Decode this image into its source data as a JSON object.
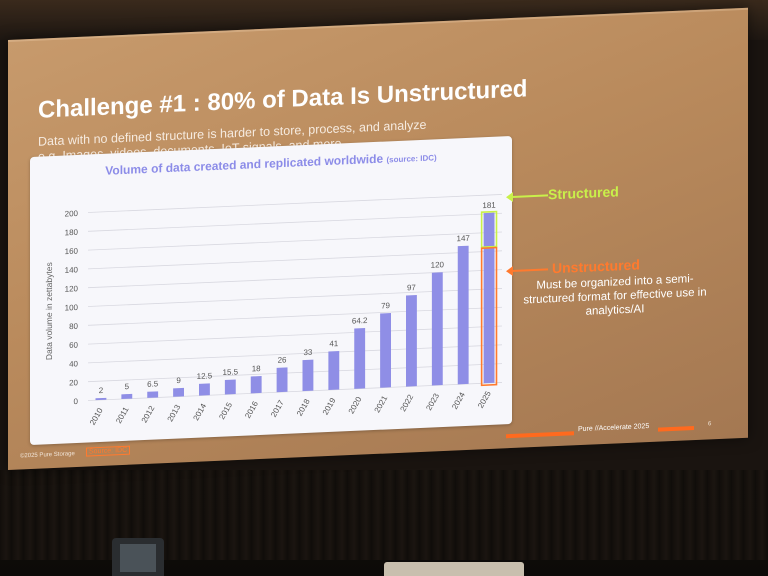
{
  "slide": {
    "title": "Challenge #1 : 80% of Data Is Unstructured",
    "subtitle_line1": "Data with no defined structure is harder to store, process, and analyze",
    "subtitle_line2": "e.g. Images, videos, documents, IoT signals, and more",
    "legend_structured": "Structured",
    "legend_unstructured": "Unstructured",
    "legend_unstructured_desc": "Must be organized into a semi-structured format for effective use in analytics/AI",
    "footer_copyright": "©2025 Pure Storage",
    "footer_source": "Source: IDC",
    "footer_brand": "Pure //Accelerate 2025",
    "page_number": "6"
  },
  "colors": {
    "bar": "#8f8ee6",
    "structured": "#c9f04a",
    "unstructured": "#ff7a2e"
  },
  "chart_data": {
    "type": "bar",
    "title": "Volume of data created and replicated worldwide",
    "title_source": "(source: IDC)",
    "ylabel": "Data volume in zettabytes",
    "xlabel": "",
    "categories": [
      "2010",
      "2011",
      "2012",
      "2013",
      "2014",
      "2015",
      "2016",
      "2017",
      "2018",
      "2019",
      "2020",
      "2021",
      "2022",
      "2023",
      "2024",
      "2025"
    ],
    "values": [
      2,
      5,
      6.5,
      9,
      12.5,
      15.5,
      18,
      26,
      33,
      41,
      64.2,
      79,
      97,
      120,
      147,
      181
    ],
    "data_labels": [
      "2",
      "5",
      "6.5",
      "9",
      "12.5",
      "15.5",
      "18",
      "26",
      "33",
      "41",
      "64.2",
      "79",
      "97",
      "120",
      "147",
      "181"
    ],
    "ylim": [
      0,
      200
    ],
    "yticks": [
      0,
      20,
      40,
      60,
      80,
      100,
      120,
      140,
      160,
      180,
      200
    ],
    "grid": true,
    "highlight": {
      "category": "2025",
      "structured_fraction": 0.2,
      "unstructured_fraction": 0.8
    }
  }
}
